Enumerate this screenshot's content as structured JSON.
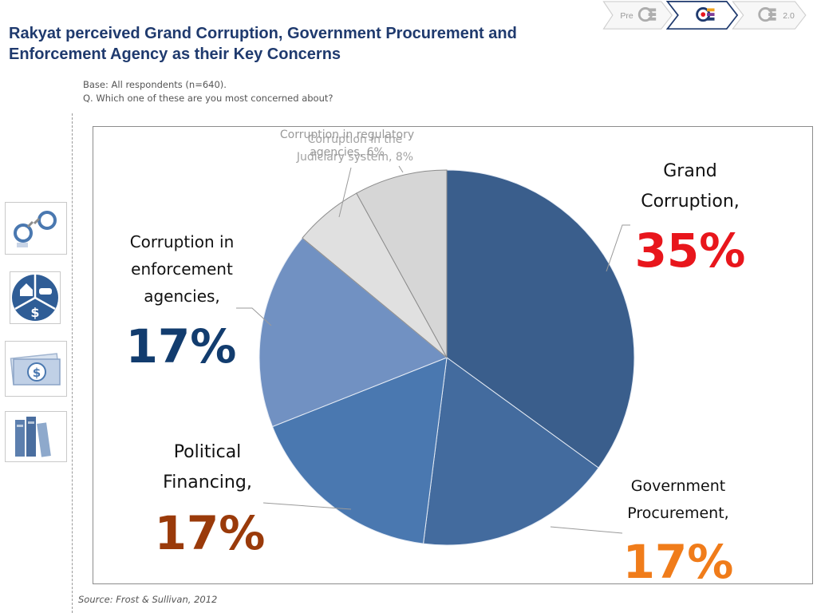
{
  "header": {
    "title": "Rakyat perceived Grand Corruption, Government Procurement and Enforcement Agency as their Key Concerns",
    "base_line1": "Base: All respondents (n=640).",
    "base_line2": "Q. Which one of these are you most concerned about?"
  },
  "nav": {
    "steps": [
      {
        "label": "Pre",
        "icon": "gtp-logo-icon"
      },
      {
        "label": "",
        "icon": "gtp-logo-icon"
      },
      {
        "label": "2.0",
        "icon": "gtp-logo-icon"
      }
    ]
  },
  "sidebar": {
    "icons": [
      "handcuffs-icon",
      "house-car-dollar-icon",
      "money-bill-icon",
      "books-icon"
    ]
  },
  "footer": {
    "source": "Source: Frost & Sullivan, 2012"
  },
  "chart_data": {
    "type": "pie",
    "slices": [
      {
        "label": "Grand Corruption,",
        "value": 35,
        "value_label": "35%",
        "color": "#3a5e8c",
        "value_color": "#e8161c"
      },
      {
        "label": "Government Procurement,",
        "value": 17,
        "value_label": "17%",
        "color": "#436b9e",
        "value_color": "#f07c1a"
      },
      {
        "label": "Political Financing,",
        "value": 17,
        "value_label": "17%",
        "color": "#4a78b0",
        "value_color": "#9a3a0a"
      },
      {
        "label": "Corruption in enforcement agencies,",
        "value": 17,
        "value_label": "17%",
        "color": "#7191c2",
        "value_color": "#123c6e"
      },
      {
        "label": "Corruption in regulatory agencies,",
        "value": 6,
        "value_label": "6%",
        "color": "#e0e0e0",
        "value_color": "#999999"
      },
      {
        "label": "Corruption in the Judiciary system,",
        "value": 8,
        "value_label": "8%",
        "color": "#d6d6d6",
        "value_color": "#999999"
      }
    ],
    "start_angle": "12 o'clock",
    "direction": "clockwise"
  }
}
